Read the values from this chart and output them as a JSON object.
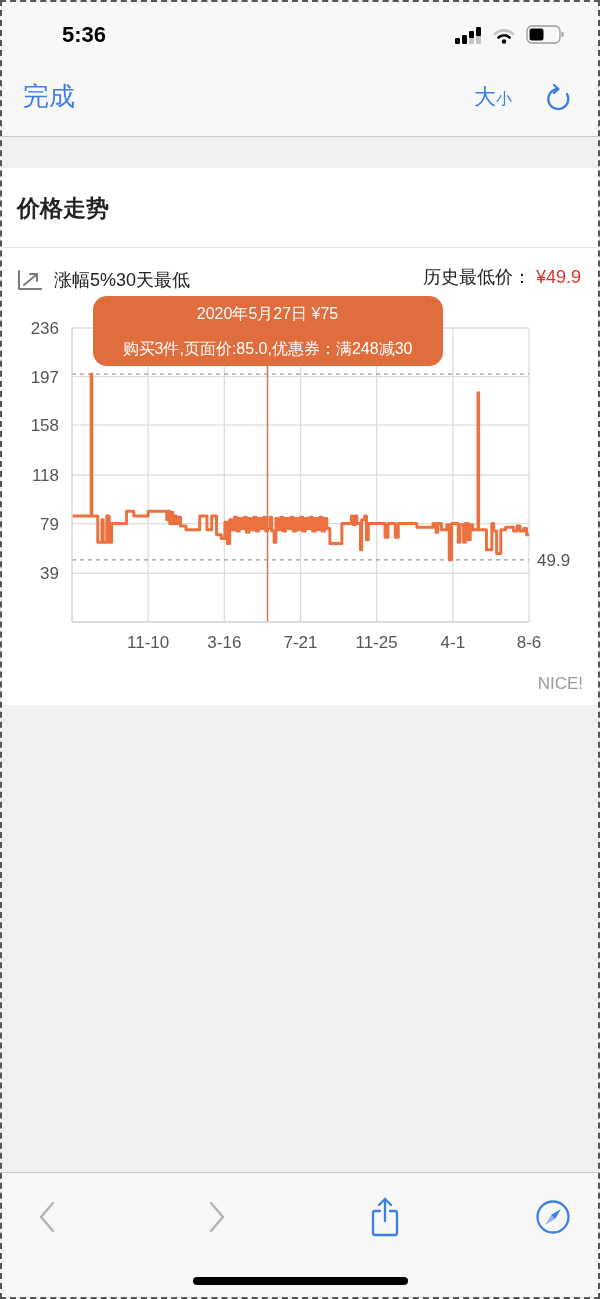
{
  "chart_data": {
    "type": "step",
    "title": "价格走势",
    "subtitle": "涨幅5%30天最低",
    "annotations": [
      "5:36",
      "完成",
      "大小",
      "历史最低价：",
      "¥49.9",
      "2020年5月27日 ¥75",
      "购买3件,页面价:85.0,优惠券：满248减30",
      "NICE!"
    ],
    "x": [
      "2019-07-06",
      "2019-08-07",
      "2019-08-08",
      "2019-08-18",
      "2019-08-25",
      "2019-08-27",
      "2019-09-02",
      "2019-09-06",
      "2019-09-10",
      "2019-10-05",
      "2019-10-17",
      "2019-11-10",
      "2019-12-11",
      "2019-12-13",
      "2019-12-16",
      "2019-12-18",
      "2019-12-21",
      "2019-12-24",
      "2019-12-27",
      "2019-12-31",
      "2020-01-03",
      "2020-01-12",
      "2020-02-04",
      "2020-02-16",
      "2020-02-24",
      "2020-03-03",
      "2020-03-11",
      "2020-03-17",
      "2020-03-21",
      "2020-03-25",
      "2020-03-29",
      "2020-04-02",
      "2020-04-06",
      "2020-04-10",
      "2020-04-14",
      "2020-04-18",
      "2020-04-22",
      "2020-04-26",
      "2020-04-30",
      "2020-05-04",
      "2020-05-08",
      "2020-05-12",
      "2020-05-16",
      "2020-05-20",
      "2020-05-24",
      "2020-05-27",
      "2020-05-31",
      "2020-06-03",
      "2020-06-07",
      "2020-06-10",
      "2020-06-14",
      "2020-06-18",
      "2020-06-22",
      "2020-06-26",
      "2020-07-01",
      "2020-07-05",
      "2020-07-09",
      "2020-07-13",
      "2020-07-17",
      "2020-07-21",
      "2020-07-25",
      "2020-07-29",
      "2020-08-02",
      "2020-08-06",
      "2020-08-10",
      "2020-08-14",
      "2020-08-18",
      "2020-08-22",
      "2020-08-26",
      "2020-08-30",
      "2020-09-03",
      "2020-09-08",
      "2020-09-28",
      "2020-10-14",
      "2020-10-17",
      "2020-10-20",
      "2020-10-23",
      "2020-10-29",
      "2020-10-31",
      "2020-11-05",
      "2020-11-08",
      "2020-11-11",
      "2020-12-09",
      "2020-12-14",
      "2020-12-26",
      "2020-12-31",
      "2021-01-31",
      "2021-02-27",
      "2021-03-04",
      "2021-03-07",
      "2021-03-13",
      "2021-03-22",
      "2021-03-26",
      "2021-03-30",
      "2021-04-10",
      "2021-04-13",
      "2021-04-19",
      "2021-04-22",
      "2021-04-27",
      "2021-04-30",
      "2021-05-04",
      "2021-05-13",
      "2021-05-14",
      "2021-05-27",
      "2021-06-05",
      "2021-06-08",
      "2021-06-13",
      "2021-06-20",
      "2021-06-28",
      "2021-07-11",
      "2021-07-17",
      "2021-07-22",
      "2021-07-28",
      "2021-08-02",
      "2021-08-06"
    ],
    "series": [
      {
        "color": "#eb7240",
        "values": [
          85,
          199,
          85,
          64,
          82,
          64,
          85,
          64,
          79,
          89,
          85,
          89,
          82,
          89,
          79,
          88,
          79,
          85,
          79,
          84,
          77,
          74,
          85,
          74,
          85,
          70,
          67,
          80,
          63,
          82,
          74,
          84,
          73,
          83,
          75,
          84,
          72,
          83,
          74,
          84,
          73,
          83,
          75,
          84,
          73,
          75,
          84,
          73,
          64,
          83,
          74,
          84,
          73,
          83,
          75,
          84,
          73,
          83,
          74,
          84,
          73,
          83,
          75,
          84,
          73,
          83,
          74,
          84,
          73,
          83,
          75,
          63,
          79,
          85,
          78,
          85,
          79,
          58,
          82,
          85,
          66,
          79,
          68,
          79,
          68,
          79,
          76,
          79,
          72,
          79,
          74,
          78,
          50,
          79,
          64,
          78,
          64,
          79,
          66,
          78,
          74,
          184,
          74,
          58,
          79,
          73,
          55,
          74,
          76,
          73,
          77,
          73,
          75,
          70,
          70
        ]
      }
    ],
    "xlim": [
      "2019-07-06",
      "2021-08-06"
    ],
    "xticks": [
      {
        "value": "2019-11-10",
        "label": "11-10"
      },
      {
        "value": "2020-03-16",
        "label": "3-16"
      },
      {
        "value": "2020-07-21",
        "label": "7-21"
      },
      {
        "value": "2020-11-25",
        "label": "11-25"
      },
      {
        "value": "2021-04-01",
        "label": "4-1"
      },
      {
        "value": "2021-08-06",
        "label": "8-6"
      }
    ],
    "ylim": [
      0,
      236
    ],
    "yticks": [
      39,
      79,
      118,
      158,
      197,
      236
    ],
    "grid": true,
    "marker": "none",
    "line_style": "solid",
    "ref_lines": [
      {
        "axis": "y",
        "value": 199,
        "line_style": "dashed",
        "color": "#999999"
      },
      {
        "axis": "y",
        "value": 49.9,
        "label": "49.9",
        "line_style": "dashed",
        "color": "#999999"
      },
      {
        "axis": "x",
        "value": "2020-05-27",
        "color": "#c8794f"
      }
    ]
  }
}
